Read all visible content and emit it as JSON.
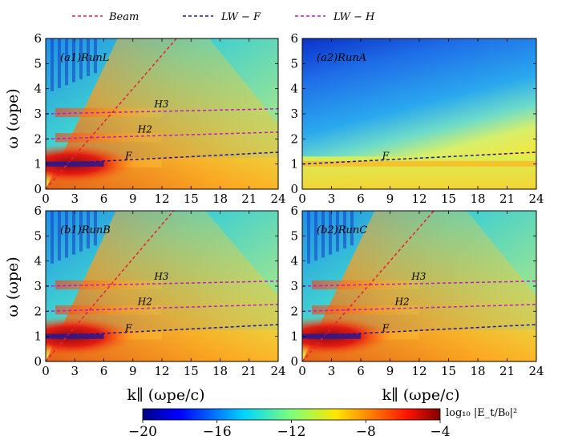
{
  "legend": [
    {
      "label": "Beam",
      "color": "#e8203a"
    },
    {
      "label": "LW − F",
      "color": "#1a1aa8"
    },
    {
      "label": "LW − H",
      "color": "#c01ec0"
    }
  ],
  "colorbar": {
    "label": "log₁₀ |E_t/B₀|²",
    "ticks": [
      "−20",
      "−16",
      "−12",
      "−8",
      "−4"
    ],
    "min": -20,
    "max": -4
  },
  "axes": {
    "xlabel": "k∥ (ωpe/c)",
    "ylabel": "ω (ωpe)",
    "xticks": [
      "0",
      "3",
      "6",
      "9",
      "12",
      "15",
      "18",
      "21",
      "24"
    ],
    "yticks": [
      "0",
      "1",
      "2",
      "3",
      "4",
      "5",
      "6"
    ]
  },
  "chart_data": [
    {
      "type": "heatmap",
      "title": "(a1)RunL",
      "xlim": [
        0,
        24
      ],
      "ylim": [
        0,
        6
      ],
      "beam_line": {
        "x": [
          0,
          13.5
        ],
        "y": [
          0,
          6
        ]
      },
      "lw_f": {
        "x": [
          0,
          24
        ],
        "y": [
          1.0,
          1.47
        ]
      },
      "lw_h": [
        {
          "x": [
            0,
            24
          ],
          "y": [
            2.0,
            2.27
          ]
        },
        {
          "x": [
            0,
            24
          ],
          "y": [
            3.0,
            3.2
          ]
        }
      ],
      "annotations": [
        {
          "text": "F",
          "x": 8.2,
          "y": 1.2
        },
        {
          "text": "H2",
          "x": 9.5,
          "y": 2.25
        },
        {
          "text": "H3",
          "x": 11.2,
          "y": 3.25
        }
      ]
    },
    {
      "type": "heatmap",
      "title": "(a2)RunA",
      "xlim": [
        0,
        24
      ],
      "ylim": [
        0,
        6
      ],
      "lw_f": {
        "x": [
          0,
          24
        ],
        "y": [
          1.0,
          1.47
        ]
      },
      "annotations": [
        {
          "text": "F",
          "x": 8.2,
          "y": 1.2
        }
      ]
    },
    {
      "type": "heatmap",
      "title": "(b1)RunB",
      "xlim": [
        0,
        24
      ],
      "ylim": [
        0,
        6
      ],
      "beam_line": {
        "x": [
          0,
          13.2
        ],
        "y": [
          0,
          6
        ]
      },
      "lw_f": {
        "x": [
          0,
          24
        ],
        "y": [
          1.0,
          1.47
        ]
      },
      "lw_h": [
        {
          "x": [
            0,
            24
          ],
          "y": [
            2.0,
            2.27
          ]
        },
        {
          "x": [
            0,
            24
          ],
          "y": [
            3.0,
            3.2
          ]
        }
      ],
      "annotations": [
        {
          "text": "F",
          "x": 8.2,
          "y": 1.2
        },
        {
          "text": "H2",
          "x": 9.5,
          "y": 2.25
        },
        {
          "text": "H3",
          "x": 11.2,
          "y": 3.25
        }
      ]
    },
    {
      "type": "heatmap",
      "title": "(b2)RunC",
      "xlim": [
        0,
        24
      ],
      "ylim": [
        0,
        6
      ],
      "beam_line": {
        "x": [
          0,
          13.5
        ],
        "y": [
          0,
          6
        ]
      },
      "lw_f": {
        "x": [
          0,
          24
        ],
        "y": [
          1.0,
          1.47
        ]
      },
      "lw_h": [
        {
          "x": [
            0,
            24
          ],
          "y": [
            2.0,
            2.27
          ]
        },
        {
          "x": [
            0,
            24
          ],
          "y": [
            3.0,
            3.2
          ]
        }
      ],
      "annotations": [
        {
          "text": "F",
          "x": 8.2,
          "y": 1.2
        },
        {
          "text": "H2",
          "x": 9.5,
          "y": 2.25
        },
        {
          "text": "H3",
          "x": 11.2,
          "y": 3.25
        }
      ]
    }
  ]
}
